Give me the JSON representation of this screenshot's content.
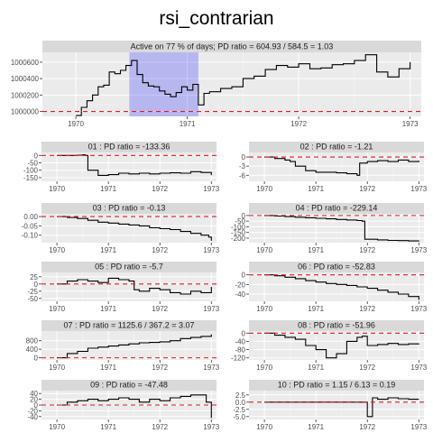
{
  "title": "rsi_contrarian",
  "chart_data": [
    {
      "type": "line",
      "strip": "Active on 77 % of days; PD ratio =  604.93 / 584.5 = 1.03",
      "xticks": [
        "1970",
        "1971",
        "1972",
        "1973"
      ],
      "yticks": [
        1000000,
        1000200,
        1000400,
        1000600
      ],
      "yticklabels": [
        "1000000",
        "1000200",
        "1000400",
        "1000600"
      ],
      "xlim": [
        1969.7,
        1973.1
      ],
      "ylim": [
        999940,
        1000720
      ],
      "ref": 1000000,
      "highlight": [
        1970.48,
        1971.1
      ],
      "x": [
        1970.0,
        1970.05,
        1970.1,
        1970.15,
        1970.2,
        1970.25,
        1970.3,
        1970.35,
        1970.4,
        1970.45,
        1970.5,
        1970.55,
        1970.6,
        1970.65,
        1970.7,
        1970.75,
        1970.8,
        1970.85,
        1970.9,
        1970.95,
        1971.0,
        1971.05,
        1971.1,
        1971.15,
        1971.2,
        1971.3,
        1971.4,
        1971.5,
        1971.6,
        1971.7,
        1971.8,
        1971.9,
        1972.0,
        1972.1,
        1972.2,
        1972.3,
        1972.4,
        1972.5,
        1972.6,
        1972.7,
        1972.8,
        1972.9,
        1973.0
      ],
      "y": [
        999950,
        1000050,
        1000130,
        1000200,
        1000300,
        1000320,
        1000480,
        1000460,
        1000500,
        1000560,
        1000620,
        1000450,
        1000350,
        1000310,
        1000300,
        1000250,
        1000210,
        1000180,
        1000230,
        1000300,
        1000260,
        1000330,
        1000080,
        1000220,
        1000240,
        1000280,
        1000300,
        1000400,
        1000430,
        1000510,
        1000560,
        1000540,
        1000580,
        1000520,
        1000530,
        1000570,
        1000580,
        1000620,
        1000690,
        1000480,
        1000420,
        1000520,
        1000600
      ]
    },
    {
      "type": "line",
      "strip": "01 : PD ratio =  -133.36",
      "xticks": [
        "1970",
        "1971",
        "1972",
        "1973"
      ],
      "yticks": [
        0,
        -50,
        -100,
        -150
      ],
      "yticklabels": [
        "0",
        "-50",
        "-100",
        "-150"
      ],
      "xlim": [
        1969.7,
        1973.1
      ],
      "ylim": [
        -175,
        20
      ],
      "ref": 0,
      "x": [
        1970.0,
        1970.2,
        1970.4,
        1970.5,
        1970.55,
        1970.6,
        1970.8,
        1971.0,
        1971.2,
        1971.4,
        1971.6,
        1971.8,
        1972.0,
        1972.2,
        1972.4,
        1972.6,
        1972.8,
        1973.0
      ],
      "y": [
        0,
        0,
        2,
        5,
        0,
        -100,
        -135,
        -130,
        -120,
        -125,
        -120,
        -125,
        -120,
        -118,
        -120,
        -110,
        -115,
        -133
      ]
    },
    {
      "type": "line",
      "strip": "02 : PD ratio =  -1.21",
      "xticks": [
        "1970",
        "1971",
        "1972",
        "1973"
      ],
      "yticks": [
        0,
        -3,
        -6
      ],
      "yticklabels": [
        "0",
        "-3",
        "-6"
      ],
      "xlim": [
        1969.7,
        1973.1
      ],
      "ylim": [
        -8,
        1.5
      ],
      "ref": 0,
      "x": [
        1970.0,
        1970.2,
        1970.4,
        1970.5,
        1970.6,
        1970.8,
        1971.0,
        1971.2,
        1971.4,
        1971.6,
        1971.8,
        1971.85,
        1972.0,
        1972.2,
        1972.4,
        1972.6,
        1972.8,
        1973.0
      ],
      "y": [
        0,
        -0.5,
        -1,
        -1.5,
        -3,
        -4.5,
        -5,
        -5,
        -5.2,
        -5.5,
        -6,
        -2,
        -1.5,
        -1.2,
        -1.5,
        -1,
        -1.5,
        -1.2
      ]
    },
    {
      "type": "line",
      "strip": "03 : PD ratio =  -0.13",
      "xticks": [
        "1970",
        "1971",
        "1972",
        "1973"
      ],
      "yticks": [
        0.0,
        -0.05,
        -0.1
      ],
      "yticklabels": [
        "0.00",
        "-0.05",
        "-0.10"
      ],
      "xlim": [
        1969.7,
        1973.1
      ],
      "ylim": [
        -0.14,
        0.015
      ],
      "ref": 0,
      "x": [
        1970.0,
        1970.2,
        1970.4,
        1970.6,
        1970.8,
        1971.0,
        1971.2,
        1971.4,
        1971.6,
        1971.8,
        1972.0,
        1972.2,
        1972.4,
        1972.6,
        1972.8,
        1972.95,
        1973.0
      ],
      "y": [
        0,
        -0.005,
        -0.01,
        -0.02,
        -0.03,
        -0.035,
        -0.04,
        -0.045,
        -0.05,
        -0.06,
        -0.065,
        -0.07,
        -0.08,
        -0.09,
        -0.1,
        -0.11,
        -0.13
      ]
    },
    {
      "type": "line",
      "strip": "04 : PD ratio =  -229.14",
      "xticks": [
        "1970",
        "1971",
        "1972",
        "1973"
      ],
      "yticks": [
        0,
        -50,
        -100,
        -150,
        -200
      ],
      "yticklabels": [
        "0",
        "-50",
        "-100",
        "-150",
        "-200"
      ],
      "xlim": [
        1969.7,
        1973.1
      ],
      "ylim": [
        -240,
        15
      ],
      "ref": 0,
      "x": [
        1970.0,
        1970.2,
        1970.4,
        1970.6,
        1970.8,
        1971.0,
        1971.2,
        1971.4,
        1971.6,
        1971.8,
        1971.9,
        1971.95,
        1972.2,
        1972.4,
        1972.6,
        1972.8,
        1973.0
      ],
      "y": [
        0,
        -5,
        -10,
        -15,
        -20,
        -25,
        -30,
        -35,
        -40,
        -45,
        -50,
        -210,
        -215,
        -220,
        -222,
        -225,
        -229
      ]
    },
    {
      "type": "line",
      "strip": "05 : PD ratio =  -5.7",
      "xticks": [
        "1970",
        "1971",
        "1972",
        "1973"
      ],
      "yticks": [
        25,
        0,
        -25,
        -50
      ],
      "yticklabels": [
        "25",
        "0",
        "-25",
        "-50"
      ],
      "xlim": [
        1969.7,
        1973.1
      ],
      "ylim": [
        -60,
        40
      ],
      "ref": 0,
      "x": [
        1970.0,
        1970.2,
        1970.4,
        1970.6,
        1970.8,
        1971.0,
        1971.2,
        1971.4,
        1971.5,
        1971.6,
        1971.8,
        1972.0,
        1972.2,
        1972.4,
        1972.6,
        1972.8,
        1973.0
      ],
      "y": [
        0,
        10,
        15,
        10,
        5,
        20,
        15,
        10,
        -20,
        -25,
        -15,
        -20,
        -30,
        -35,
        -25,
        -30,
        -10
      ]
    },
    {
      "type": "line",
      "strip": "06 : PD ratio =  -52.83",
      "xticks": [
        "1970",
        "1971",
        "1972",
        "1973"
      ],
      "yticks": [
        0,
        -20,
        -40
      ],
      "yticklabels": [
        "0",
        "-20",
        "-40"
      ],
      "xlim": [
        1969.7,
        1973.1
      ],
      "ylim": [
        -55,
        5
      ],
      "ref": 0,
      "x": [
        1970.0,
        1970.2,
        1970.4,
        1970.6,
        1970.8,
        1971.0,
        1971.2,
        1971.4,
        1971.6,
        1971.8,
        1972.0,
        1972.2,
        1972.4,
        1972.6,
        1972.8,
        1973.0
      ],
      "y": [
        0,
        -2,
        -5,
        -8,
        -12,
        -15,
        -18,
        -20,
        -22,
        -25,
        -28,
        -32,
        -36,
        -40,
        -45,
        -52
      ]
    },
    {
      "type": "line",
      "strip": "07 : PD ratio =  1125.6 / 367.2 = 3.07",
      "xticks": [
        "1970",
        "1971",
        "1972",
        "1973"
      ],
      "yticks": [
        800,
        400,
        0
      ],
      "yticklabels": [
        "800",
        "400",
        "0"
      ],
      "xlim": [
        1969.7,
        1973.1
      ],
      "ylim": [
        -100,
        1250
      ],
      "ref": 0,
      "x": [
        1970.0,
        1970.2,
        1970.4,
        1970.6,
        1970.8,
        1971.0,
        1971.2,
        1971.4,
        1971.6,
        1971.8,
        1972.0,
        1972.2,
        1972.4,
        1972.6,
        1972.8,
        1973.0
      ],
      "y": [
        0,
        200,
        300,
        450,
        500,
        550,
        600,
        650,
        700,
        720,
        750,
        800,
        900,
        950,
        1000,
        1100
      ]
    },
    {
      "type": "line",
      "strip": "08 : PD ratio =  -51.96",
      "xticks": [
        "1970",
        "1971",
        "1972",
        "1973"
      ],
      "yticks": [
        0,
        -40,
        -80,
        -120
      ],
      "yticklabels": [
        "0",
        "-40",
        "-80",
        "-120"
      ],
      "xlim": [
        1969.7,
        1973.1
      ],
      "ylim": [
        -130,
        10
      ],
      "ref": 0,
      "x": [
        1970.0,
        1970.2,
        1970.4,
        1970.6,
        1970.8,
        1971.0,
        1971.2,
        1971.4,
        1971.6,
        1971.8,
        1971.9,
        1972.0,
        1972.2,
        1972.4,
        1972.6,
        1972.8,
        1973.0
      ],
      "y": [
        0,
        -10,
        -20,
        -30,
        -60,
        -80,
        -120,
        -100,
        -40,
        -20,
        -15,
        -60,
        -55,
        -50,
        -55,
        -52,
        -50
      ]
    },
    {
      "type": "line",
      "strip": "09 : PD ratio =  -47.48",
      "xticks": [
        "1970",
        "1971",
        "1972",
        "1973"
      ],
      "yticks": [
        40,
        20,
        0,
        -20,
        -40
      ],
      "yticklabels": [
        "40",
        "20",
        "0",
        "-20",
        "-40"
      ],
      "xlim": [
        1969.7,
        1973.1
      ],
      "ylim": [
        -50,
        50
      ],
      "ref": 0,
      "x": [
        1970.0,
        1970.2,
        1970.4,
        1970.6,
        1970.8,
        1971.0,
        1971.2,
        1971.4,
        1971.6,
        1971.8,
        1972.0,
        1972.2,
        1972.4,
        1972.6,
        1972.8,
        1972.9,
        1973.0
      ],
      "y": [
        0,
        10,
        15,
        20,
        15,
        20,
        25,
        20,
        10,
        20,
        15,
        25,
        30,
        35,
        35,
        10,
        -45
      ]
    },
    {
      "type": "line",
      "strip": "10 : PD ratio =  1.15 / 6.13 = 0.19",
      "xticks": [
        "1970",
        "1971",
        "1972",
        "1973"
      ],
      "yticks": [
        2.5,
        0.0,
        -2.5,
        -5.0
      ],
      "yticklabels": [
        "2.5",
        "0.0",
        "-2.5",
        "-5.0"
      ],
      "xlim": [
        1969.7,
        1973.1
      ],
      "ylim": [
        -6,
        4
      ],
      "ref": 0,
      "x": [
        1970.0,
        1970.4,
        1970.8,
        1971.0,
        1971.4,
        1971.8,
        1972.0,
        1972.1,
        1972.2,
        1972.4,
        1972.6,
        1972.8,
        1973.0
      ],
      "y": [
        0,
        0,
        0,
        0,
        0,
        0,
        -5,
        1.5,
        1,
        1.5,
        1.2,
        1.0,
        1.0
      ]
    }
  ]
}
